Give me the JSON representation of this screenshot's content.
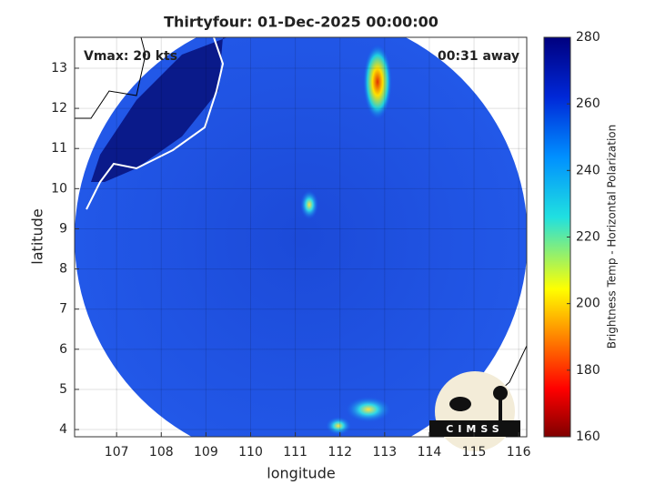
{
  "chart_data": {
    "type": "map",
    "title": "Thirtyfour: 01-Dec-2025 00:00:00",
    "annotations": [
      "Vmax: 20 kts",
      "00:31 away"
    ],
    "xlabel": "longitude",
    "ylabel": "latitude",
    "xlim": [
      106.06,
      116.18
    ],
    "ylim": [
      3.82,
      13.77
    ],
    "xticks": [
      107,
      108,
      109,
      110,
      111,
      112,
      113,
      114,
      115,
      116
    ],
    "yticks": [
      4,
      5,
      6,
      7,
      8,
      9,
      10,
      11,
      12,
      13
    ],
    "grid": true,
    "colorbar": {
      "label": "Brightness Temp - Horizontal Polarization",
      "lim": [
        160,
        280
      ],
      "ticks": [
        160,
        180,
        200,
        220,
        240,
        260,
        280
      ]
    },
    "logo": "CIMSS"
  }
}
